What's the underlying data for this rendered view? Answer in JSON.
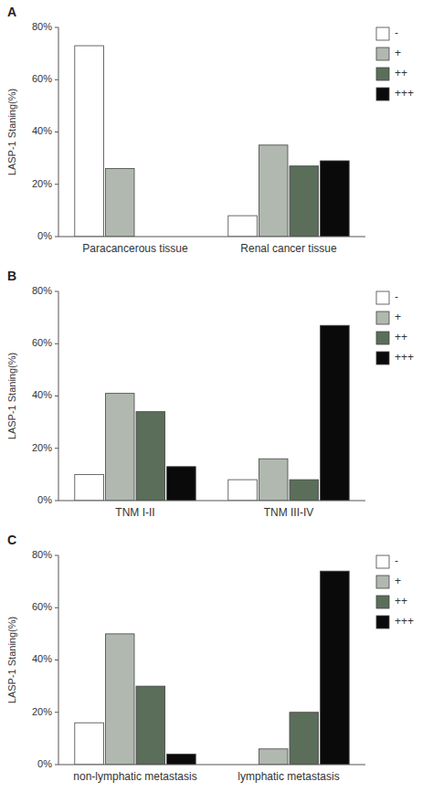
{
  "chart_data": [
    {
      "type": "bar",
      "title": "A",
      "y_label": "LASP-1 Staning(%)",
      "categories": [
        "Paracancerous tissue",
        "Renal cancer tissue"
      ],
      "series": [
        {
          "name": "-",
          "color": "#ffffff",
          "values": [
            73,
            8
          ]
        },
        {
          "name": "+",
          "color": "#b0b8b0",
          "values": [
            26,
            35
          ]
        },
        {
          "name": "++",
          "color": "#5a6e5a",
          "values": [
            0,
            27
          ]
        },
        {
          "name": "+++",
          "color": "#0a0a0a",
          "values": [
            0,
            29
          ]
        }
      ],
      "ylim": [
        0,
        80
      ],
      "yticks": [
        {
          "value": 0,
          "label": "0%"
        },
        {
          "value": 20,
          "label": "20%"
        },
        {
          "value": 40,
          "label": "40%"
        },
        {
          "value": 60,
          "label": "60%"
        },
        {
          "value": 80,
          "label": "80%"
        }
      ],
      "grid": false,
      "legend": "right"
    },
    {
      "type": "bar",
      "title": "B",
      "y_label": "LASP-1 Staning(%)",
      "categories": [
        "TNM I-II",
        "TNM III-IV"
      ],
      "series": [
        {
          "name": "-",
          "color": "#ffffff",
          "values": [
            10,
            8
          ]
        },
        {
          "name": "+",
          "color": "#b0b8b0",
          "values": [
            41,
            16
          ]
        },
        {
          "name": "++",
          "color": "#5a6e5a",
          "values": [
            34,
            8
          ]
        },
        {
          "name": "+++",
          "color": "#0a0a0a",
          "values": [
            13,
            67
          ]
        }
      ],
      "ylim": [
        0,
        80
      ],
      "yticks": [
        {
          "value": 0,
          "label": "0%"
        },
        {
          "value": 20,
          "label": "20%"
        },
        {
          "value": 40,
          "label": "40%"
        },
        {
          "value": 60,
          "label": "60%"
        },
        {
          "value": 80,
          "label": "80%"
        }
      ],
      "grid": false,
      "legend": "right"
    },
    {
      "type": "bar",
      "title": "C",
      "y_label": "LASP-1 Staning(%)",
      "categories": [
        "non-lymphatic metastasis",
        "lymphatic metastasis"
      ],
      "series": [
        {
          "name": "-",
          "color": "#ffffff",
          "values": [
            16,
            0
          ]
        },
        {
          "name": "+",
          "color": "#b0b8b0",
          "values": [
            50,
            6
          ]
        },
        {
          "name": "++",
          "color": "#5a6e5a",
          "values": [
            30,
            20
          ]
        },
        {
          "name": "+++",
          "color": "#0a0a0a",
          "values": [
            4,
            74
          ]
        }
      ],
      "ylim": [
        0,
        80
      ],
      "yticks": [
        {
          "value": 0,
          "label": "0%"
        },
        {
          "value": 20,
          "label": "20%"
        },
        {
          "value": 40,
          "label": "40%"
        },
        {
          "value": 60,
          "label": "60%"
        },
        {
          "value": 80,
          "label": "80%"
        }
      ],
      "grid": false,
      "legend": "right"
    }
  ]
}
